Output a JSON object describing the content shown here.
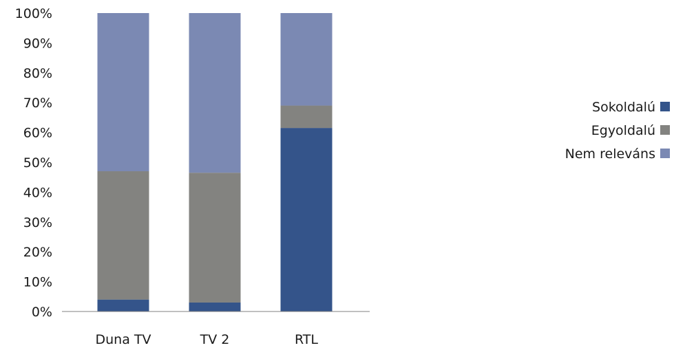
{
  "chart_data": {
    "type": "bar",
    "stacked": true,
    "categories": [
      "Duna TV",
      "TV 2",
      "RTL"
    ],
    "series": [
      {
        "name": "Sokoldalú",
        "color": "#34548a",
        "values": [
          4,
          3,
          61.5
        ]
      },
      {
        "name": "Egyoldalú",
        "color": "#838380",
        "values": [
          43,
          43.5,
          7.5
        ]
      },
      {
        "name": "Nem releváns",
        "color": "#7b89b3",
        "values": [
          53,
          53.5,
          31
        ]
      }
    ],
    "ylim": [
      0,
      100
    ],
    "yticks": [
      "0%",
      "10%",
      "20%",
      "30%",
      "40%",
      "50%",
      "60%",
      "70%",
      "80%",
      "90%",
      "100%"
    ],
    "title": "",
    "xlabel": "",
    "ylabel": "",
    "grid": false,
    "legend_position": "right"
  }
}
